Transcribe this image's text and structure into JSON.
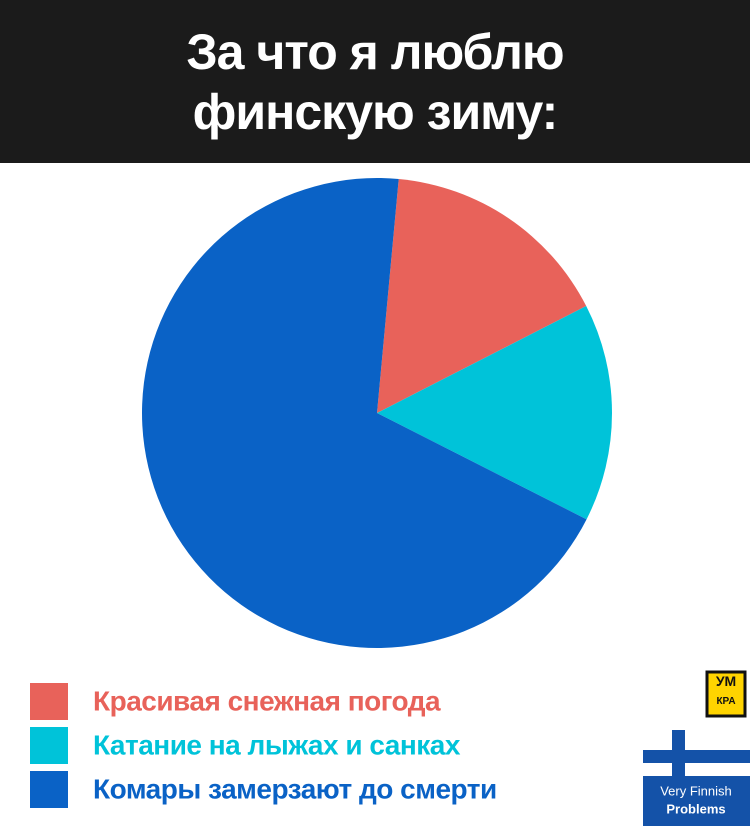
{
  "chart_data": {
    "type": "pie",
    "title": "За что я люблю финскую зиму:",
    "categories": [
      "Красивая снежная погода",
      "Катание на лыжах и санках",
      "Комары замерзают до смерти"
    ],
    "values": [
      16,
      15,
      69
    ],
    "colors": [
      "#e8625a",
      "#00c3d9",
      "#0a62c6"
    ]
  },
  "logos": {
    "umkra": [
      "УМ",
      "КРА"
    ],
    "flag": [
      "Very Finnish",
      "Problems"
    ]
  }
}
